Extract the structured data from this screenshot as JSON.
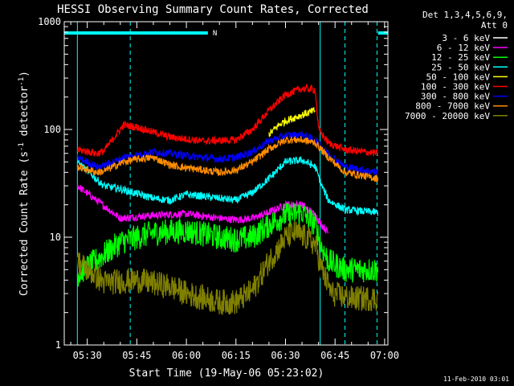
{
  "chart_data": {
    "type": "line",
    "title": "HESSI Observing Summary Count Rates, Corrected",
    "xlabel": "Start Time (19-May-06 05:23:02)",
    "ylabel_main": "Corrected Count Rate (s",
    "ylabel_sup1": "-1",
    "ylabel_mid": " detector",
    "ylabel_sup2": "-1",
    "ylabel_end": ")",
    "y_scale": "log",
    "ylim": [
      1,
      1000
    ],
    "xlim_minutes": [
      5.0,
      101.0
    ],
    "x_ticks": [
      {
        "label": "05:30",
        "m": 30
      },
      {
        "label": "05:45",
        "m": 45
      },
      {
        "label": "06:00",
        "m": 60
      },
      {
        "label": "06:15",
        "m": 75
      },
      {
        "label": "06:30",
        "m": 90
      },
      {
        "label": "06:45",
        "m": 105
      },
      {
        "label": "07:00",
        "m": 120
      }
    ],
    "y_ticks": [
      {
        "label": "1",
        "v": 1
      },
      {
        "label": "10",
        "v": 10
      },
      {
        "label": "100",
        "v": 100
      },
      {
        "label": "1000",
        "v": 1000
      }
    ],
    "legend_header": [
      "Det 1,3,4,5,6,9,",
      "Att 0"
    ],
    "legend_placement": "right",
    "footer_date": "11-Feb-2010 03:01",
    "night_label": "N",
    "night_bars": [
      [
        5,
        48.5
      ],
      [
        100,
        120
      ]
    ],
    "boundary_lines": [
      {
        "m": 27,
        "style": "solid"
      },
      {
        "m": 43,
        "style": "dashed"
      },
      {
        "m": 100.5,
        "style": "solid"
      },
      {
        "m": 108,
        "style": "dashed"
      },
      {
        "m": 117.7,
        "style": "dashed"
      }
    ],
    "series": [
      {
        "name": "3 - 6 keV",
        "color": "#000000",
        "points": [
          [
            27,
            6
          ],
          [
            35,
            4.5
          ],
          [
            45,
            4.5
          ],
          [
            55,
            3.5
          ],
          [
            60,
            2.8
          ],
          [
            70,
            2.2
          ],
          [
            75,
            2.0
          ],
          [
            80,
            3
          ],
          [
            85,
            5
          ],
          [
            88,
            7
          ],
          [
            90,
            9
          ],
          [
            93,
            10
          ],
          [
            96,
            8.5
          ],
          [
            99,
            7
          ],
          [
            101,
            4
          ],
          [
            103,
            2.5
          ]
        ]
      },
      {
        "name": "6 - 12 keV",
        "color": "#ff00ff",
        "points": [
          [
            27,
            30
          ],
          [
            40,
            15
          ],
          [
            50,
            16
          ],
          [
            60,
            16.5
          ],
          [
            70,
            15
          ],
          [
            75,
            14.5
          ],
          [
            80,
            15
          ],
          [
            85,
            17
          ],
          [
            90,
            20
          ],
          [
            95,
            20
          ],
          [
            99,
            16
          ],
          [
            101,
            13
          ],
          [
            103,
            11
          ]
        ]
      },
      {
        "name": "12 - 25 keV",
        "color": "#00ff00",
        "points": [
          [
            27,
            4.5
          ],
          [
            40,
            9
          ],
          [
            50,
            11
          ],
          [
            60,
            11.5
          ],
          [
            70,
            10
          ],
          [
            75,
            9.5
          ],
          [
            80,
            10
          ],
          [
            85,
            13
          ],
          [
            90,
            16
          ],
          [
            95,
            17
          ],
          [
            99,
            13
          ],
          [
            101,
            8
          ],
          [
            103,
            6
          ],
          [
            108,
            5
          ],
          [
            118,
            5
          ]
        ]
      },
      {
        "name": "25 - 50 keV",
        "color": "#00ffff",
        "points": [
          [
            27,
            50
          ],
          [
            35,
            30
          ],
          [
            40,
            28
          ],
          [
            50,
            23
          ],
          [
            55,
            22
          ],
          [
            60,
            25
          ],
          [
            70,
            23
          ],
          [
            75,
            22
          ],
          [
            80,
            26
          ],
          [
            85,
            35
          ],
          [
            90,
            50
          ],
          [
            95,
            52
          ],
          [
            99,
            45
          ],
          [
            101,
            30
          ],
          [
            103,
            22
          ],
          [
            108,
            18
          ],
          [
            118,
            17
          ]
        ]
      },
      {
        "name": "50 - 100 keV",
        "color": "#ffff00",
        "points": [
          [
            85,
            90
          ],
          [
            88,
            110
          ],
          [
            90,
            120
          ],
          [
            93,
            130
          ],
          [
            96,
            140
          ],
          [
            99,
            150
          ]
        ]
      },
      {
        "name": "100 - 300 keV",
        "color": "#ff0000",
        "points": [
          [
            27,
            65
          ],
          [
            33,
            60
          ],
          [
            35,
            63
          ],
          [
            41,
            110
          ],
          [
            45,
            105
          ],
          [
            55,
            85
          ],
          [
            65,
            78
          ],
          [
            75,
            80
          ],
          [
            80,
            100
          ],
          [
            85,
            150
          ],
          [
            90,
            210
          ],
          [
            95,
            240
          ],
          [
            99,
            235
          ],
          [
            100,
            100
          ],
          [
            103,
            75
          ],
          [
            108,
            65
          ],
          [
            118,
            60
          ]
        ]
      },
      {
        "name": "300 - 800 keV",
        "color": "#0000ff",
        "points": [
          [
            27,
            55
          ],
          [
            33,
            45
          ],
          [
            35,
            46
          ],
          [
            41,
            55
          ],
          [
            45,
            58
          ],
          [
            50,
            62
          ],
          [
            55,
            60
          ],
          [
            60,
            57
          ],
          [
            65,
            55
          ],
          [
            70,
            53
          ],
          [
            75,
            55
          ],
          [
            80,
            62
          ],
          [
            85,
            78
          ],
          [
            90,
            88
          ],
          [
            95,
            90
          ],
          [
            99,
            80
          ],
          [
            103,
            60
          ],
          [
            108,
            45
          ],
          [
            118,
            40
          ]
        ]
      },
      {
        "name": "800 - 7000 keV",
        "color": "#ff8c00",
        "points": [
          [
            27,
            45
          ],
          [
            33,
            40
          ],
          [
            35,
            41
          ],
          [
            41,
            50
          ],
          [
            45,
            53
          ],
          [
            50,
            55
          ],
          [
            55,
            47
          ],
          [
            60,
            44
          ],
          [
            65,
            42
          ],
          [
            70,
            40
          ],
          [
            75,
            42
          ],
          [
            80,
            50
          ],
          [
            85,
            66
          ],
          [
            90,
            80
          ],
          [
            95,
            80
          ],
          [
            99,
            75
          ],
          [
            103,
            55
          ],
          [
            108,
            40
          ],
          [
            118,
            35
          ]
        ]
      },
      {
        "name": "7000 - 20000 keV",
        "color": "#808000",
        "points": [
          [
            27,
            6
          ],
          [
            35,
            3.8
          ],
          [
            45,
            4.0
          ],
          [
            55,
            3.5
          ],
          [
            60,
            3.0
          ],
          [
            70,
            2.5
          ],
          [
            75,
            2.5
          ],
          [
            80,
            3.2
          ],
          [
            85,
            6
          ],
          [
            88,
            8
          ],
          [
            90,
            10
          ],
          [
            93,
            11
          ],
          [
            96,
            10
          ],
          [
            99,
            8.5
          ],
          [
            101,
            5
          ],
          [
            104,
            3
          ],
          [
            110,
            2.7
          ],
          [
            118,
            2.7
          ]
        ]
      }
    ]
  }
}
